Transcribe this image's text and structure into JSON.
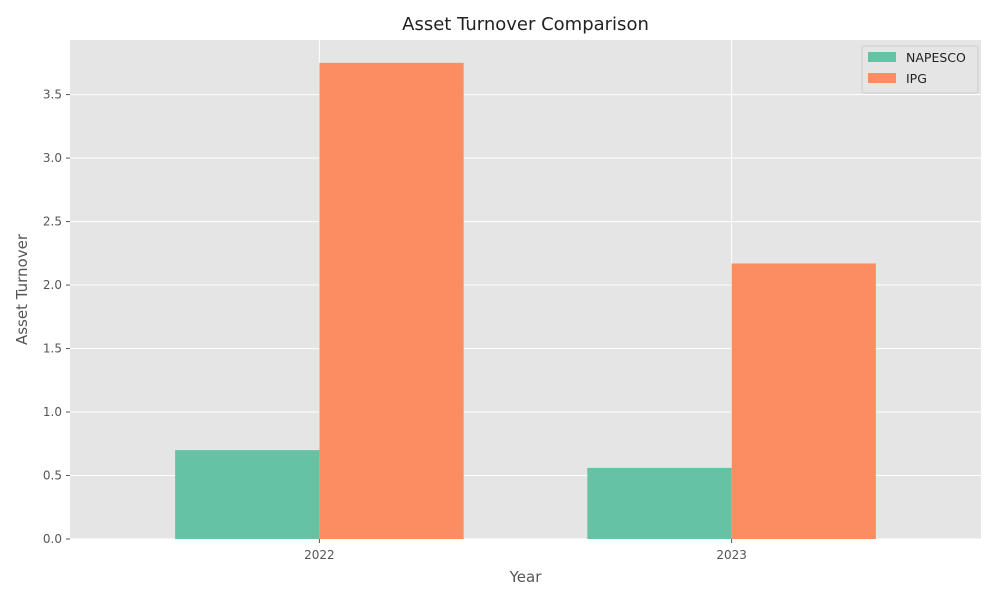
{
  "chart_data": {
    "type": "bar",
    "title": "Asset Turnover Comparison",
    "xlabel": "Year",
    "ylabel": "Asset Turnover",
    "categories": [
      "2022",
      "2023"
    ],
    "series": [
      {
        "name": "NAPESCO",
        "values": [
          0.7,
          0.56
        ],
        "color": "#66c2a5"
      },
      {
        "name": "IPG",
        "values": [
          3.75,
          2.17
        ],
        "color": "#fc8d62"
      }
    ],
    "ylim": [
      0,
      3.93
    ],
    "yticks": [
      "0.0",
      "0.5",
      "1.0",
      "1.5",
      "2.0",
      "2.5",
      "3.0",
      "3.5"
    ],
    "grid": true,
    "legend_position": "top-right"
  }
}
